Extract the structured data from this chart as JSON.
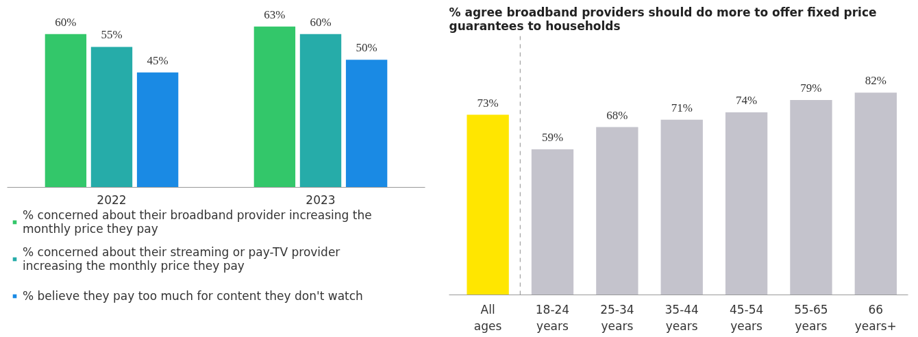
{
  "chart_data": [
    {
      "type": "bar",
      "categories": [
        "2022",
        "2023"
      ],
      "legend": "bottom",
      "grid": false,
      "series": [
        {
          "name": "% concerned about their broadband provider increasing the monthly price they pay",
          "color": "#33c76a",
          "values": [
            60,
            63
          ],
          "value_labels": [
            "60%",
            "63%"
          ]
        },
        {
          "name": "% concerned about their streaming or pay-TV provider increasing the monthly price they pay",
          "color": "#26aca9",
          "values": [
            55,
            60
          ],
          "value_labels": [
            "55%",
            "60%"
          ]
        },
        {
          "name": "% believe they pay too much for content they don't watch",
          "color": "#1a8ae4",
          "values": [
            45,
            50
          ],
          "value_labels": [
            "45%",
            "50%"
          ]
        }
      ]
    },
    {
      "type": "bar",
      "title": "% agree broadband providers should do more to offer fixed price guarantees to households",
      "grid": false,
      "categories": [
        "All ages",
        "18-24 years",
        "25-34 years",
        "35-44 years",
        "45-54 years",
        "55-65 years",
        "66 years+"
      ],
      "values": [
        73,
        59,
        68,
        71,
        74,
        79,
        82
      ],
      "value_labels": [
        "73%",
        "59%",
        "68%",
        "71%",
        "74%",
        "79%",
        "82%"
      ],
      "colors": [
        "#ffe600",
        "#c4c3cc",
        "#c4c3cc",
        "#c4c3cc",
        "#c4c3cc",
        "#c4c3cc",
        "#c4c3cc"
      ]
    }
  ]
}
